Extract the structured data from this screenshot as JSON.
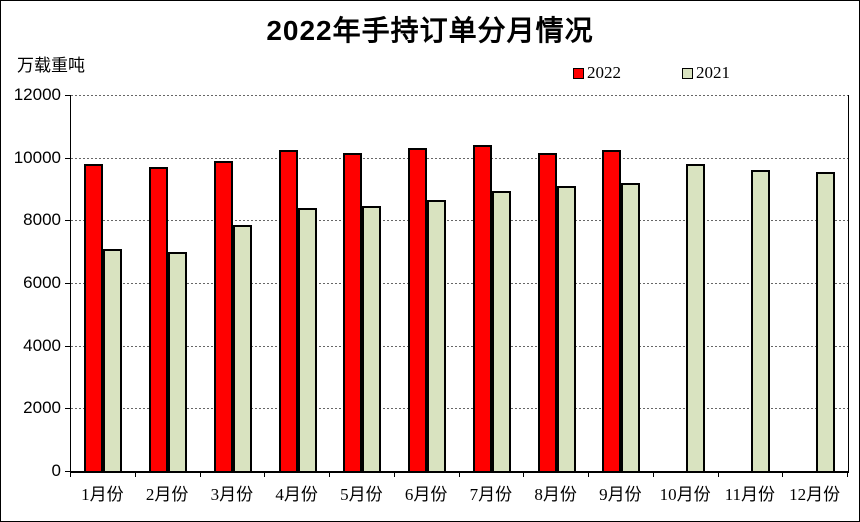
{
  "chart_data": {
    "type": "bar",
    "title": "2022年手持订单分月情况",
    "ylabel": "万载重吨",
    "xlabel": "",
    "categories": [
      "1月份",
      "2月份",
      "3月份",
      "4月份",
      "5月份",
      "6月份",
      "7月份",
      "8月份",
      "9月份",
      "10月份",
      "11月份",
      "12月份"
    ],
    "series": [
      {
        "name": "2022",
        "color": "#FF0000",
        "values": [
          9800,
          9700,
          9900,
          10250,
          10150,
          10300,
          10400,
          10150,
          10250,
          null,
          null,
          null
        ]
      },
      {
        "name": "2021",
        "color": "#D9E3C0",
        "values": [
          7100,
          7000,
          7850,
          8400,
          8450,
          8650,
          8950,
          9100,
          9200,
          9800,
          9600,
          9550
        ]
      }
    ],
    "ylim": [
      0,
      12000
    ],
    "yticks": [
      0,
      2000,
      4000,
      6000,
      8000,
      10000,
      12000
    ],
    "grid": "horizontal-dashed",
    "legend_position": "top-right",
    "bar_border_color": "#000000"
  }
}
